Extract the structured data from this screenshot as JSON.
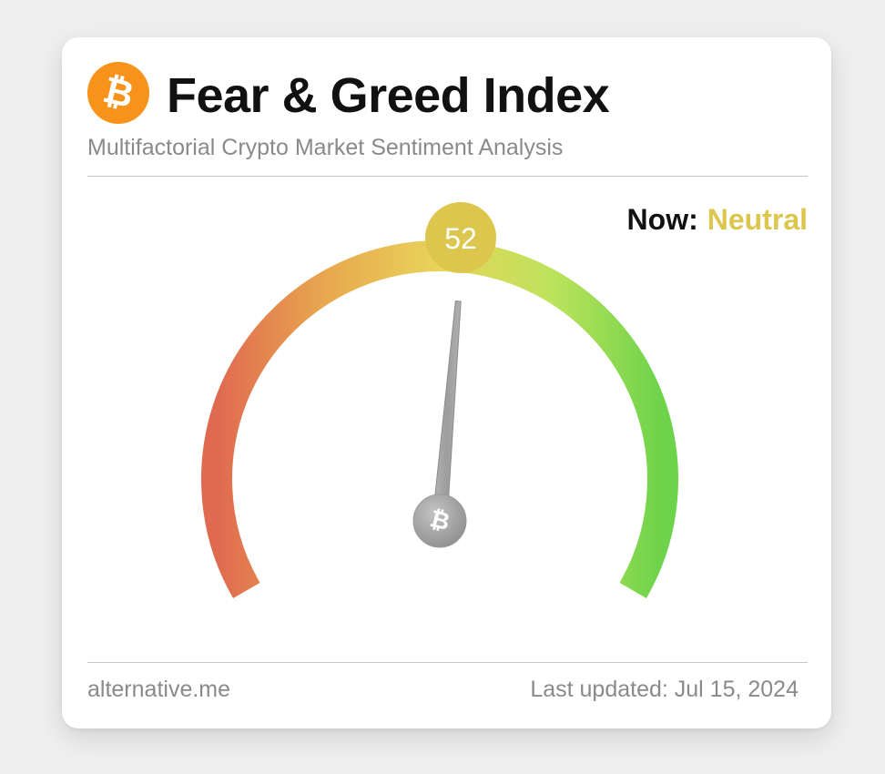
{
  "header": {
    "logo_icon": "bitcoin-icon",
    "logo_glyph": "₿",
    "title": "Fear & Greed Index",
    "subtitle": "Multifactorial Crypto Market Sentiment Analysis"
  },
  "status": {
    "now_label": "Now:",
    "now_value": "Neutral",
    "now_color": "#dcc64d"
  },
  "gauge": {
    "value": 52,
    "value_text": "52",
    "min": 0,
    "max": 100,
    "hub_glyph": "₿",
    "colors": {
      "fear": "#e06a50",
      "mid_fear": "#e8a94f",
      "neutral": "#e8d45a",
      "mid_greed": "#bde35c",
      "greed": "#6cd34a",
      "badge": "#dcc64d",
      "needle": "#a8a8a8"
    }
  },
  "footer": {
    "source": "alternative.me",
    "updated": "Last updated: Jul 15, 2024"
  }
}
